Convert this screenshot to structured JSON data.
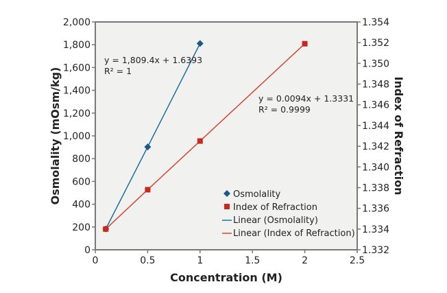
{
  "chart_data": {
    "type": "scatter",
    "xlabel": "Concentration (M)",
    "ylabel": "Osmolality (mOsm/kg)",
    "y2label": "Index of Refraction",
    "xlim": [
      0,
      2.5
    ],
    "ylim": [
      0,
      2000
    ],
    "y2lim": [
      1.332,
      1.354
    ],
    "x_ticks": [
      "0",
      "0.5",
      "1",
      "1.5",
      "2",
      "2.5"
    ],
    "x_tick_values": [
      0,
      0.5,
      1,
      1.5,
      2,
      2.5
    ],
    "y_ticks": [
      "0",
      "200",
      "400",
      "600",
      "800",
      "1,000",
      "1,200",
      "1,400",
      "1,600",
      "1,800",
      "2,000"
    ],
    "y_tick_values": [
      0,
      200,
      400,
      600,
      800,
      1000,
      1200,
      1400,
      1600,
      1800,
      2000
    ],
    "y2_ticks": [
      "1.332",
      "1.334",
      "1.336",
      "1.338",
      "1.340",
      "1.342",
      "1.344",
      "1.346",
      "1.348",
      "1.350",
      "1.352",
      "1.354"
    ],
    "y2_tick_values": [
      1.332,
      1.334,
      1.336,
      1.338,
      1.34,
      1.342,
      1.344,
      1.346,
      1.348,
      1.35,
      1.352,
      1.354
    ],
    "grid": false,
    "legend_placement": "bottom-right",
    "series": [
      {
        "name": "Osmolality",
        "axis": "left",
        "marker": "diamond",
        "color": "#1a5a8a",
        "x": [
          0.1,
          0.5,
          1
        ],
        "y": [
          183,
          903,
          1811
        ]
      },
      {
        "name": "Index of Refraction",
        "axis": "right",
        "marker": "square",
        "color": "#c8281e",
        "x": [
          0.1,
          0.5,
          1,
          2
        ],
        "y": [
          1.334,
          1.3378,
          1.3425,
          1.3519
        ]
      }
    ],
    "trendlines": [
      {
        "name": "Linear (Osmolality)",
        "color": "#1a6fa0",
        "equation": "y = 1,809.4x + 1.6393",
        "r2": "R² = 1"
      },
      {
        "name": "Linear (Index of Refraction)",
        "color": "#d9452f",
        "equation": "y = 0.0094x + 1.3331",
        "r2": "R² = 0.9999"
      }
    ],
    "plot_background": "#f1f1f0"
  }
}
